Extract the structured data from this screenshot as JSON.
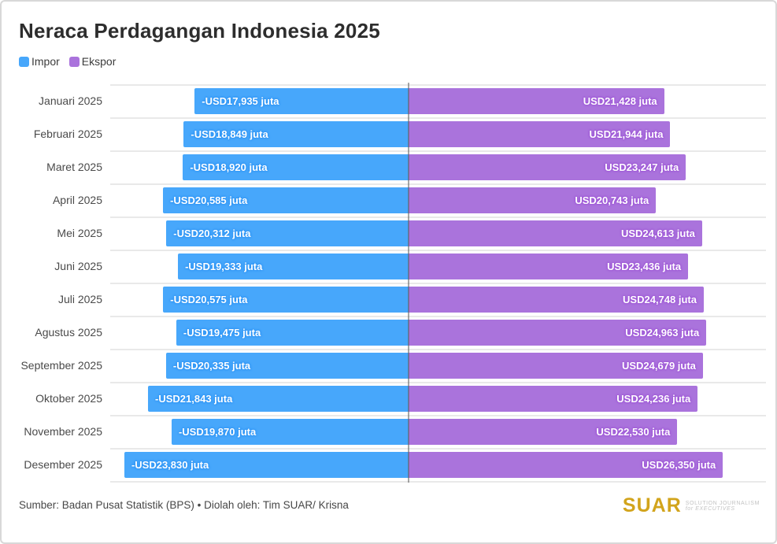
{
  "title": "Neraca Perdagangan Indonesia 2025",
  "legend": {
    "impor_label": "Impor",
    "ekspor_label": "Ekspor"
  },
  "colors": {
    "impor": "#47a7fb",
    "ekspor": "#aa73dc",
    "axis": "#5f5f5f",
    "gridline": "#e9e9e9",
    "brand_gold": "#d2a41c"
  },
  "chart_data": {
    "type": "bar",
    "orientation": "horizontal-diverging",
    "title": "Neraca Perdagangan Indonesia 2025",
    "unit": "USD juta",
    "xlabel": "",
    "ylabel": "",
    "xlim": [
      -25000,
      30000
    ],
    "grid": "row-separators",
    "legend_position": "top-left",
    "categories": [
      "Januari 2025",
      "Februari 2025",
      "Maret 2025",
      "April 2025",
      "Mei 2025",
      "Juni 2025",
      "Juli 2025",
      "Agustus 2025",
      "September 2025",
      "Oktober 2025",
      "November 2025",
      "Desember 2025"
    ],
    "series": [
      {
        "name": "Impor",
        "color": "#47a7fb",
        "values": [
          -17935,
          -18849,
          -18920,
          -20585,
          -20312,
          -19333,
          -20575,
          -19475,
          -20335,
          -21843,
          -19870,
          -23830
        ]
      },
      {
        "name": "Ekspor",
        "color": "#aa73dc",
        "values": [
          21428,
          21944,
          23247,
          20743,
          24613,
          23436,
          24748,
          24963,
          24679,
          24236,
          22530,
          26350
        ]
      }
    ],
    "bar_labels": {
      "impor": [
        "-USD17,935 juta",
        "-USD18,849 juta",
        "-USD18,920 juta",
        "-USD20,585 juta",
        "-USD20,312 juta",
        "-USD19,333 juta",
        "-USD20,575 juta",
        "-USD19,475 juta",
        "-USD20,335 juta",
        "-USD21,843 juta",
        "-USD19,870 juta",
        "-USD23,830 juta"
      ],
      "ekspor": [
        "USD21,428 juta",
        "USD21,944 juta",
        "USD23,247 juta",
        "USD20,743 juta",
        "USD24,613 juta",
        "USD23,436 juta",
        "USD24,748 juta",
        "USD24,963 juta",
        "USD24,679 juta",
        "USD24,236 juta",
        "USD22,530 juta",
        "USD26,350 juta"
      ]
    }
  },
  "footer": {
    "source": "Sumber: Badan Pusat Statistik (BPS) • Diolah oleh: Tim SUAR/ Krisna",
    "brand": "SUAR",
    "tagline_line1": "SOLUTION JOURNALISM",
    "tagline_line2": "for EXECUTIVES"
  }
}
